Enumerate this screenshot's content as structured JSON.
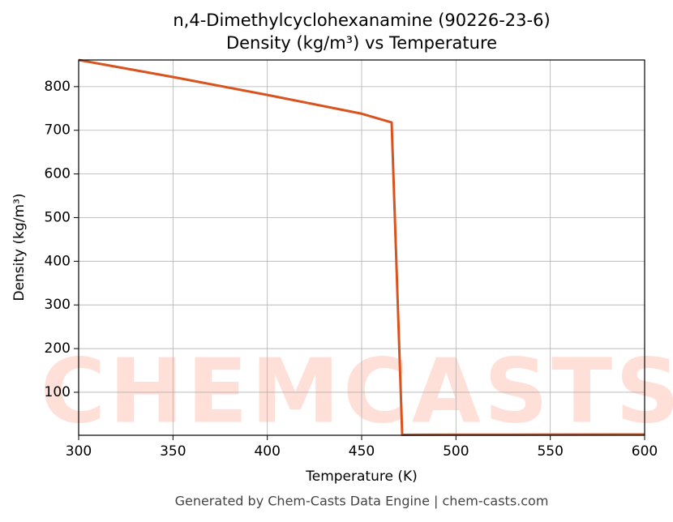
{
  "chart_data": {
    "type": "line",
    "title": "n,4-Dimethylcyclohexanamine (90226-23-6)",
    "subtitle": "Density (kg/m³) vs Temperature",
    "x_label": "Temperature (K)",
    "y_label": "Density (kg/m³)",
    "watermark": "CHEMCASTS",
    "footer": "Generated by Chem-Casts Data Engine | chem-casts.com",
    "x": [
      300,
      350,
      400,
      450,
      465.9,
      471.5,
      500,
      550,
      600
    ],
    "series": [
      {
        "name": "Density",
        "color": "#d9531e",
        "values": [
          861,
          822,
          781,
          738,
          718,
          2.5,
          2.8,
          3.1,
          3.4
        ]
      }
    ],
    "xlim": [
      300,
      600
    ],
    "xticks": [
      300,
      350,
      400,
      450,
      500,
      550,
      600
    ],
    "ylim": [
      1.5,
      861
    ],
    "yticks": [
      100,
      200,
      300,
      400,
      500,
      600,
      700,
      800
    ],
    "grid": true
  }
}
